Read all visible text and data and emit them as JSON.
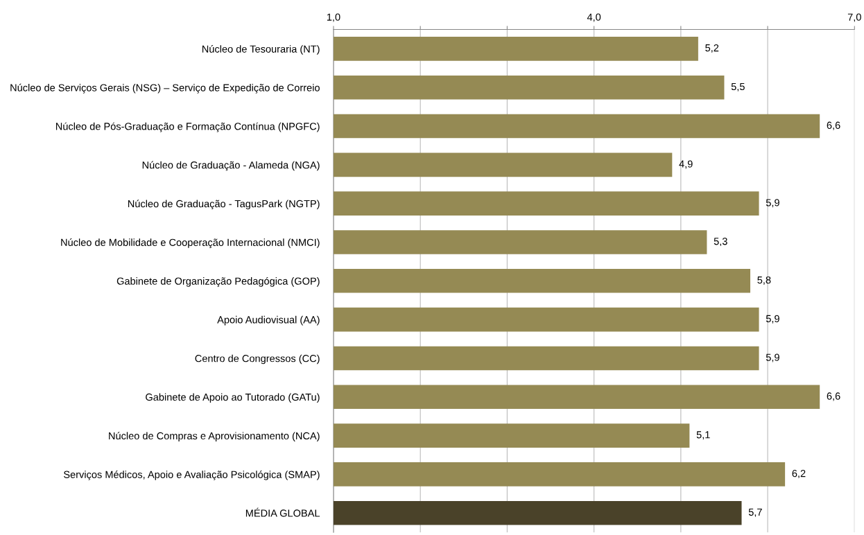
{
  "chart_data": {
    "type": "bar",
    "orientation": "horizontal",
    "categories": [
      "Núcleo de Tesouraria (NT)",
      "Núcleo de Serviços Gerais (NSG) – Serviço de Expedição de Correio",
      "Núcleo de Pós-Graduação e Formação Contínua (NPGFC)",
      "Núcleo de Graduação - Alameda (NGA)",
      "Núcleo de Graduação - TagusPark (NGTP)",
      "Núcleo de Mobilidade e Cooperação Internacional (NMCI)",
      "Gabinete de Organização Pedagógica (GOP)",
      "Apoio Audiovisual (AA)",
      "Centro de Congressos (CC)",
      "Gabinete de Apoio ao Tutorado (GATu)",
      "Núcleo de Compras e Aprovisionamento (NCA)",
      "Serviços Médicos, Apoio e Avaliação Psicológica (SMAP)",
      "MÉDIA GLOBAL"
    ],
    "values": [
      5.2,
      5.5,
      6.6,
      4.9,
      5.9,
      5.3,
      5.8,
      5.9,
      5.9,
      6.6,
      5.1,
      6.2,
      5.7
    ],
    "value_labels": [
      "5,2",
      "5,5",
      "6,6",
      "4,9",
      "5,9",
      "5,3",
      "5,8",
      "5,9",
      "5,9",
      "6,6",
      "5,1",
      "6,2",
      "5,7"
    ],
    "colors": [
      "#958a54",
      "#958a54",
      "#958a54",
      "#958a54",
      "#958a54",
      "#958a54",
      "#958a54",
      "#958a54",
      "#958a54",
      "#958a54",
      "#958a54",
      "#958a54",
      "#4a4229"
    ],
    "xlim": [
      1,
      7
    ],
    "xticks": [
      {
        "value": 1,
        "label": "1,0"
      },
      {
        "value": 2,
        "label": null
      },
      {
        "value": 3,
        "label": null
      },
      {
        "value": 4,
        "label": "4,0"
      },
      {
        "value": 5,
        "label": null
      },
      {
        "value": 6,
        "label": null
      },
      {
        "value": 7,
        "label": "7,0"
      }
    ],
    "grid": "x"
  }
}
